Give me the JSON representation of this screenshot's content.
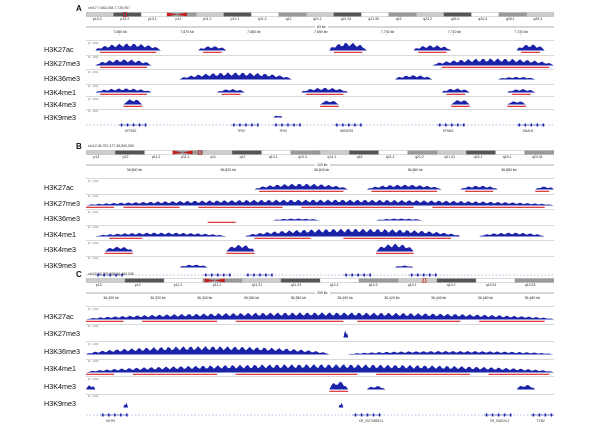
{
  "panels": [
    {
      "letter": "A",
      "locus": "chr17:7,662,038-7,725,907",
      "scale": "63 kb",
      "ticks": [
        "7,660 kb",
        "7,670 kb",
        "7,680 kb",
        "7,690 kb",
        "7,700 kb",
        "7,710 kb",
        "7,720 kb"
      ],
      "bands": [
        "p13.3",
        "p13.2",
        "p13.1",
        "p12",
        "p11.2",
        "p11.1",
        "q11.2",
        "q12",
        "q21.1",
        "q21.31",
        "q21.33",
        "q22",
        "q23.2",
        "q24.2",
        "q24.3",
        "q25.1",
        "q25.3"
      ],
      "tracks": [
        {
          "name": "H3K27ac",
          "range": "[0 - 200]",
          "peaks": [
            [
              0.02,
              0.16,
              0.8
            ],
            [
              0.24,
              0.3,
              0.5
            ],
            [
              0.52,
              0.6,
              0.9
            ],
            [
              0.7,
              0.78,
              0.6
            ],
            [
              0.92,
              0.98,
              0.7
            ]
          ],
          "calls": [
            [
              0.03,
              0.15
            ],
            [
              0.25,
              0.29
            ],
            [
              0.53,
              0.59
            ],
            [
              0.71,
              0.77
            ],
            [
              0.93,
              0.97
            ]
          ]
        },
        {
          "name": "H3K27me3",
          "range": "[0 - 200]",
          "peaks": [
            [
              0.02,
              0.14,
              0.7
            ],
            [
              0.74,
              1.0,
              0.8
            ]
          ],
          "calls": [
            [
              0.03,
              0.13
            ],
            [
              0.76,
              0.99
            ]
          ]
        },
        {
          "name": "H3K36me3",
          "range": "[0 - 200]",
          "peaks": [
            [
              0.2,
              0.44,
              0.8
            ],
            [
              0.66,
              0.74,
              0.5
            ],
            [
              0.88,
              0.96,
              0.3
            ]
          ],
          "calls": []
        },
        {
          "name": "H3K4me1",
          "range": "[0 - 200]",
          "peaks": [
            [
              0.02,
              0.14,
              0.6
            ],
            [
              0.28,
              0.34,
              0.5
            ],
            [
              0.46,
              0.56,
              0.7
            ],
            [
              0.76,
              0.82,
              0.6
            ],
            [
              0.9,
              0.96,
              0.5
            ]
          ],
          "calls": [
            [
              0.03,
              0.13
            ],
            [
              0.29,
              0.33
            ],
            [
              0.47,
              0.55
            ],
            [
              0.77,
              0.81
            ],
            [
              0.91,
              0.95
            ]
          ]
        },
        {
          "name": "H3K4me3",
          "range": "[0 - 200]",
          "peaks": [
            [
              0.08,
              0.12,
              0.8
            ],
            [
              0.5,
              0.54,
              0.6
            ],
            [
              0.78,
              0.82,
              0.7
            ],
            [
              0.9,
              0.94,
              0.5
            ]
          ],
          "calls": [
            [
              0.08,
              0.12
            ],
            [
              0.5,
              0.54
            ],
            [
              0.78,
              0.82
            ],
            [
              0.9,
              0.94
            ]
          ]
        },
        {
          "name": "H3K9me3",
          "range": "[0 - 200]",
          "peaks": [
            [
              0.4,
              0.42,
              0.3
            ]
          ],
          "calls": []
        }
      ],
      "genes": [
        {
          "name": "ATP1B2",
          "pos": 0.1
        },
        {
          "name": "TP53",
          "pos": 0.34
        },
        {
          "name": "TP53",
          "pos": 0.43
        },
        {
          "name": "WRAP53",
          "pos": 0.56
        },
        {
          "name": "EFNB3",
          "pos": 0.78
        },
        {
          "name": "DNAH2",
          "pos": 0.95
        }
      ]
    },
    {
      "letter": "B",
      "locus": "chr12:36,787,477-36,890,530",
      "scale": "103 kb",
      "ticks": [
        "36,800 kb",
        "36,820 kb",
        "36,840 kb",
        "36,860 kb",
        "36,880 kb"
      ],
      "bands": [
        "p13",
        "p12",
        "p11.2",
        "p11.1",
        "q11",
        "q12",
        "q13.1",
        "q13.3",
        "q14.1",
        "q15",
        "q21.1",
        "q21.2",
        "q21.31",
        "q23.1",
        "q24.1",
        "q24.31"
      ],
      "tracks": [
        {
          "name": "H3K27ac",
          "range": "[0 - 100]",
          "peaks": [
            [
              0.36,
              0.56,
              0.6
            ],
            [
              0.6,
              0.76,
              0.5
            ],
            [
              0.8,
              0.88,
              0.4
            ],
            [
              0.96,
              1.0,
              0.3
            ]
          ],
          "calls": [
            [
              0.37,
              0.55
            ],
            [
              0.61,
              0.75
            ],
            [
              0.81,
              0.87
            ],
            [
              0.96,
              0.99
            ]
          ]
        },
        {
          "name": "H3K27me3",
          "range": "[0 - 100]",
          "peaks": [
            [
              0.0,
              1.0,
              0.6
            ]
          ],
          "calls": [
            [
              0.0,
              0.06
            ],
            [
              0.08,
              0.2
            ],
            [
              0.24,
              0.42
            ],
            [
              0.46,
              0.7
            ],
            [
              0.74,
              0.98
            ]
          ]
        },
        {
          "name": "H3K36me3",
          "range": "[0 - 100]",
          "peaks": [
            [
              0.4,
              0.5,
              0.2
            ],
            [
              0.62,
              0.72,
              0.2
            ]
          ],
          "calls": [
            [
              0.26,
              0.32
            ]
          ]
        },
        {
          "name": "H3K4me1",
          "range": "[0 - 100]",
          "peaks": [
            [
              0.02,
              0.3,
              0.4
            ],
            [
              0.34,
              0.8,
              0.8
            ],
            [
              0.84,
              0.98,
              0.4
            ]
          ],
          "calls": [
            [
              0.05,
              0.12
            ],
            [
              0.36,
              0.48
            ],
            [
              0.55,
              0.78
            ]
          ]
        },
        {
          "name": "H3K4me3",
          "range": "[0 - 100]",
          "peaks": [
            [
              0.04,
              0.1,
              0.5
            ],
            [
              0.3,
              0.36,
              0.7
            ],
            [
              0.62,
              0.7,
              0.8
            ]
          ],
          "calls": [
            [
              0.04,
              0.1
            ],
            [
              0.3,
              0.36
            ],
            [
              0.62,
              0.7
            ]
          ]
        },
        {
          "name": "H3K9me3",
          "range": "[0 - 100]",
          "peaks": [
            [
              0.2,
              0.26,
              0.3
            ],
            [
              0.66,
              0.7,
              0.2
            ]
          ],
          "calls": []
        }
      ],
      "genes": [
        {
          "name": "PHHLB",
          "pos": 0.05
        },
        {
          "name": "KCP4-AS1",
          "pos": 0.28
        },
        {
          "name": "KCP4",
          "pos": 0.37
        },
        {
          "name": "NR_036229.1",
          "pos": 0.58
        },
        {
          "name": "CSF2RB",
          "pos": 0.72
        }
      ]
    },
    {
      "letter": "C",
      "locus": "chr22:36,275,208-36,484,936",
      "scale": "209 kb",
      "ticks": [
        "36,300 kb",
        "36,320 kb",
        "36,340 kb",
        "36,360 kb",
        "36,380 kb",
        "36,400 kb",
        "36,420 kb",
        "36,440 kb",
        "36,460 kb",
        "36,480 kb"
      ],
      "bands": [
        "p13",
        "p12",
        "p11.2",
        "p11.1",
        "q11.21",
        "q11.23",
        "q12.1",
        "q12.3",
        "q13.1",
        "q13.2",
        "q13.31",
        "q13.33"
      ],
      "tracks": [
        {
          "name": "H3K27ac",
          "range": "[0 - 100]",
          "peaks": [
            [
              0.0,
              1.0,
              0.6
            ]
          ],
          "calls": [
            [
              0.0,
              0.08
            ],
            [
              0.12,
              0.28
            ],
            [
              0.32,
              0.55
            ],
            [
              0.58,
              0.8
            ],
            [
              0.84,
              0.98
            ]
          ]
        },
        {
          "name": "H3K27me3",
          "range": "[0 - 100]",
          "peaks": [
            [
              0.55,
              0.56,
              0.6
            ]
          ],
          "calls": []
        },
        {
          "name": "H3K36me3",
          "range": "[0 - 100]",
          "peaks": [
            [
              0.0,
              0.52,
              0.7
            ],
            [
              0.56,
              1.0,
              0.3
            ]
          ],
          "calls": []
        },
        {
          "name": "H3K4me1",
          "range": "[0 - 100]",
          "peaks": [
            [
              0.0,
              1.0,
              0.7
            ]
          ],
          "calls": [
            [
              0.0,
              0.06
            ],
            [
              0.1,
              0.28
            ],
            [
              0.32,
              0.58
            ],
            [
              0.62,
              0.82
            ],
            [
              0.86,
              0.99
            ]
          ]
        },
        {
          "name": "H3K4me3",
          "range": "[0 - 100]",
          "peaks": [
            [
              0.0,
              0.02,
              0.4
            ],
            [
              0.52,
              0.56,
              0.7
            ],
            [
              0.6,
              0.64,
              0.3
            ],
            [
              0.92,
              0.96,
              0.4
            ]
          ],
          "calls": [
            [
              0.52,
              0.56
            ]
          ]
        },
        {
          "name": "H3K9me3",
          "range": "[0 - 100]",
          "peaks": [
            [
              0.08,
              0.09,
              0.4
            ],
            [
              0.54,
              0.55,
              0.4
            ]
          ],
          "calls": []
        }
      ],
      "genes": [
        {
          "name": "MYH9",
          "pos": 0.06
        },
        {
          "name": "XR_001755533.1",
          "pos": 0.6
        },
        {
          "name": "XR_936224.2",
          "pos": 0.88
        },
        {
          "name": "TXN2",
          "pos": 0.98
        }
      ]
    }
  ],
  "colors": {
    "signal": "#1a22a8",
    "call": "#e04040",
    "ideo_dark": "#555555",
    "ideo_mid": "#999999",
    "ideo_light": "#cccccc",
    "centromere": "#c41e1e"
  }
}
